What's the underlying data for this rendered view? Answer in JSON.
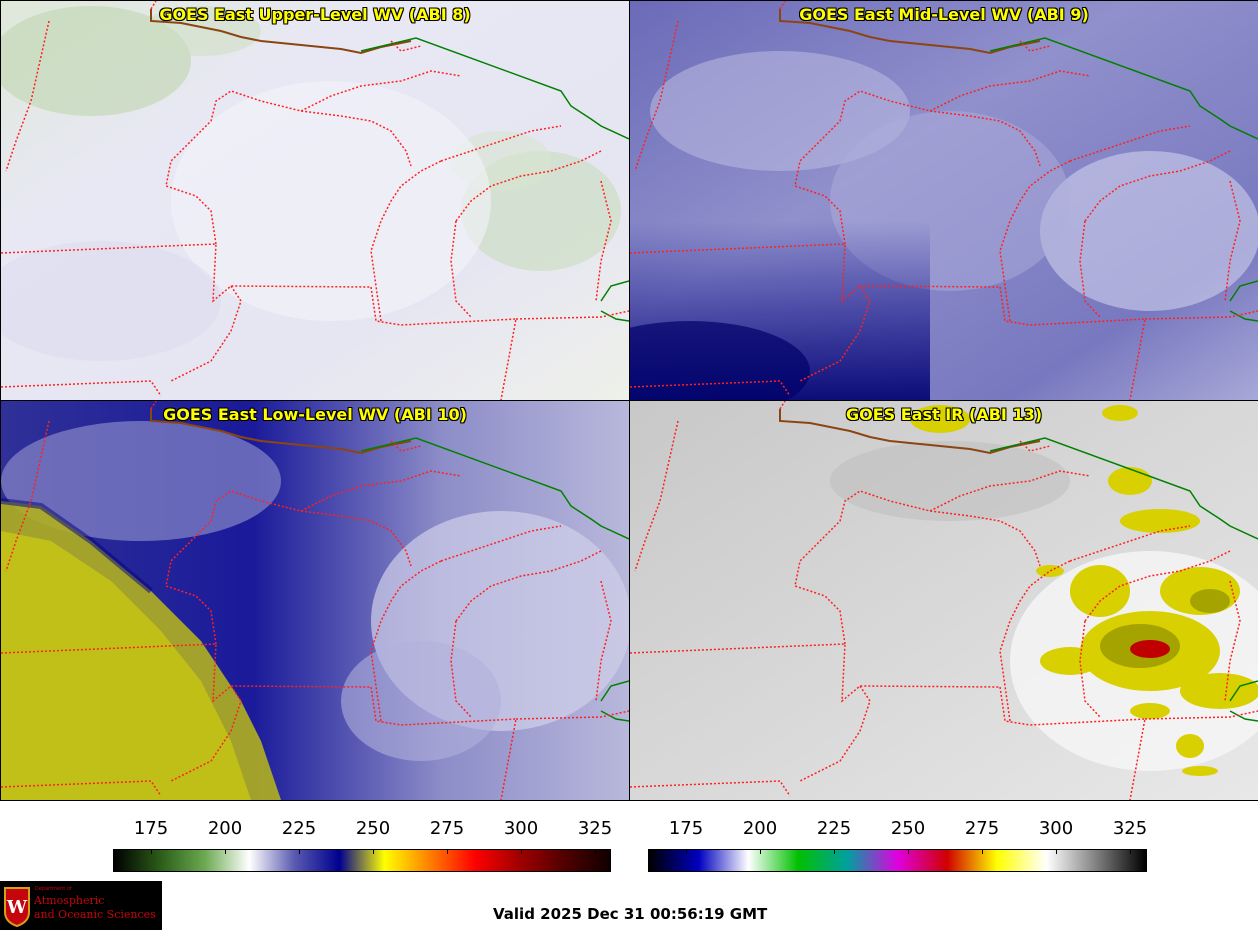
{
  "panels": [
    {
      "id": "upper",
      "title": "GOES East Upper-Level WV (ABI 8)"
    },
    {
      "id": "mid",
      "title": "GOES East Mid-Level WV (ABI 9)"
    },
    {
      "id": "low",
      "title": "GOES East Low-Level WV (ABI 10)"
    },
    {
      "id": "ir",
      "title": "GOES East IR (ABI 13)"
    }
  ],
  "colorbars": {
    "wv": {
      "ticks": [
        "175",
        "200",
        "225",
        "250",
        "275",
        "300",
        "325"
      ],
      "colors": [
        "#000000",
        "#2a5a18",
        "#6aa84f",
        "#ffffff",
        "#5a5ab0",
        "#000090",
        "#ffff00",
        "#ff8000",
        "#ff0000",
        "#a00000",
        "#500000",
        "#100000"
      ]
    },
    "ir": {
      "ticks": [
        "175",
        "200",
        "225",
        "250",
        "275",
        "300",
        "325"
      ],
      "colors": [
        "#000000",
        "#0000c0",
        "#ffffff",
        "#00c000",
        "#00a0a0",
        "#e000e0",
        "#d00000",
        "#ffff00",
        "#ffffff",
        "#808080",
        "#000000"
      ]
    }
  },
  "logo": {
    "line_small": "Department of",
    "line1": "Atmospheric",
    "line2": "and Oceanic Sciences",
    "crest_letter": "W"
  },
  "valid": "Valid 2025 Dec 31 00:56:19 GMT",
  "colors": {
    "title": "#ffff00",
    "state_border": "#ff2020",
    "country_border": "#008000",
    "coast": "#8b4513"
  }
}
